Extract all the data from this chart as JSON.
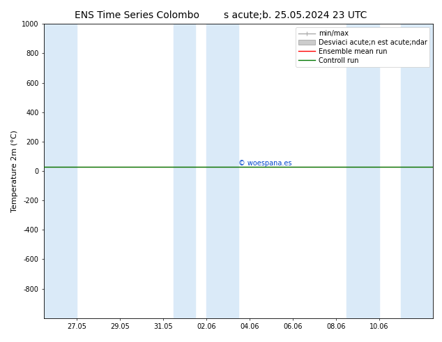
{
  "title": "ENS Time Series Colombo        s acute;b. 25.05.2024 23 UTC",
  "ylabel": "Temperature 2m (°C)",
  "ylim_top": -1000,
  "ylim_bottom": 1000,
  "yticks": [
    -800,
    -600,
    -400,
    -200,
    0,
    200,
    400,
    600,
    800,
    1000
  ],
  "xtick_labels": [
    "27.05",
    "29.05",
    "31.05",
    "02.06",
    "04.06",
    "06.06",
    "08.06",
    "10.06"
  ],
  "background_color": "#ffffff",
  "plot_background": "#ffffff",
  "shaded_band_color": "#daeaf8",
  "ensemble_mean_color": "#ff0000",
  "control_run_color": "#007700",
  "minmax_color": "#aaaaaa",
  "std_fill_color": "#cccccc",
  "watermark_text": "© woespana.es",
  "watermark_color": "#0044cc",
  "flat_value": 27.0,
  "title_fontsize": 10,
  "axis_fontsize": 8,
  "tick_fontsize": 7,
  "legend_fontsize": 7,
  "legend_label_minmax": "min/max",
  "legend_label_std": "Desviaci acute;n est acute;ndar",
  "legend_label_mean": "Ensemble mean run",
  "legend_label_ctrl": "Controll run",
  "num_x_points": 18,
  "xlim": [
    0,
    18
  ],
  "shaded_spans": [
    [
      0,
      1.5
    ],
    [
      6,
      7
    ],
    [
      7.5,
      9
    ],
    [
      14,
      15.5
    ],
    [
      16.5,
      18
    ]
  ],
  "tick_positions": [
    1.5,
    3.5,
    5.5,
    7.5,
    9.5,
    11.5,
    13.5,
    15.5
  ]
}
